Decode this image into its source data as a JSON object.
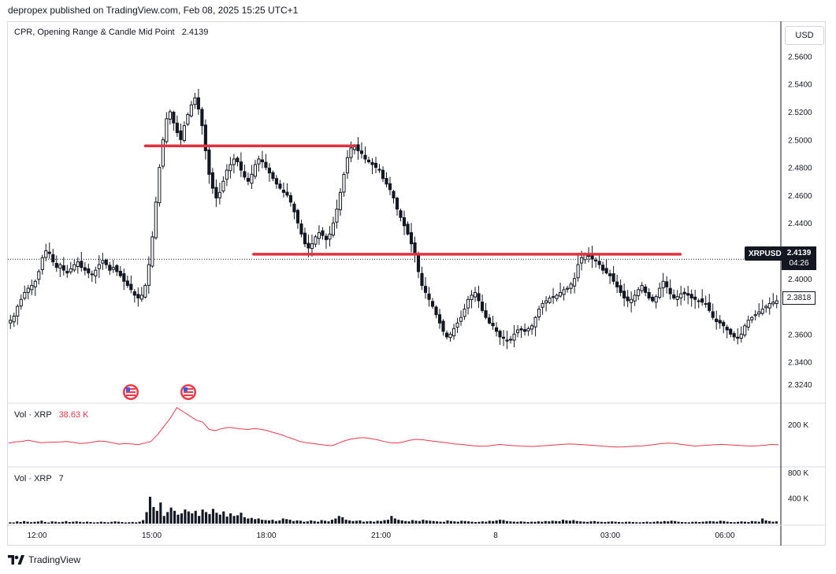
{
  "header": "depropex published on TradingView.com, Feb 08, 2025 15:25 UTC+1",
  "currency_button": "USD",
  "footer_brand": "TradingView",
  "main_legend": {
    "title": "CPR, Opening Range & Candle Mid Point",
    "value": "2.4139"
  },
  "vol_legend_1": {
    "title": "Vol · XRP",
    "value": "38.63 K"
  },
  "vol_legend_2": {
    "title": "Vol · XRP",
    "value": "7"
  },
  "price_tag": {
    "symbol": "XRPUSD",
    "price": "2.4139",
    "countdown": "04:26"
  },
  "close_value": "2.3818",
  "colors": {
    "candle": "#131722",
    "level_line": "#e0323f",
    "volume_ma": "#f23645",
    "price_line": "#131722"
  },
  "event_icons": [
    "us-flag-icon",
    "us-flag-icon"
  ],
  "chart_data": {
    "type": "candlestick",
    "x_ticks": [
      "12:00",
      "15:00",
      "18:00",
      "21:00",
      "8",
      "03:00",
      "06:00"
    ],
    "y_ticks": [
      "2.5600",
      "2.5400",
      "2.5200",
      "2.5000",
      "2.4800",
      "2.4600",
      "2.4400",
      "2.4200",
      "2.4000",
      "2.3818",
      "2.3600",
      "2.3400",
      "2.3240"
    ],
    "ylim": [
      2.316,
      2.571
    ],
    "horizontal_levels": [
      {
        "price": 2.4955,
        "from": "14:50",
        "to": "20:20"
      },
      {
        "price": 2.4175,
        "from": "17:40",
        "to": "04:50"
      }
    ],
    "last_price": 2.4139,
    "close_price": 2.3818,
    "price_path": [
      2.37,
      2.373,
      2.38,
      2.385,
      2.39,
      2.393,
      2.395,
      2.398,
      2.405,
      2.415,
      2.42,
      2.418,
      2.412,
      2.408,
      2.41,
      2.406,
      2.404,
      2.407,
      2.41,
      2.412,
      2.408,
      2.406,
      2.404,
      2.403,
      2.406,
      2.41,
      2.413,
      2.41,
      2.406,
      2.408,
      2.405,
      2.402,
      2.398,
      2.395,
      2.392,
      2.388,
      2.386,
      2.388,
      2.395,
      2.41,
      2.43,
      2.455,
      2.48,
      2.5,
      2.515,
      2.52,
      2.512,
      2.505,
      2.5,
      2.51,
      2.518,
      2.525,
      2.53,
      2.522,
      2.51,
      2.492,
      2.475,
      2.465,
      2.458,
      2.462,
      2.47,
      2.478,
      2.482,
      2.486,
      2.484,
      2.478,
      2.473,
      2.47,
      2.475,
      2.482,
      2.486,
      2.484,
      2.48,
      2.476,
      2.472,
      2.468,
      2.465,
      2.462,
      2.46,
      2.455,
      2.448,
      2.44,
      2.432,
      2.425,
      2.422,
      2.425,
      2.43,
      2.433,
      2.431,
      2.428,
      2.432,
      2.44,
      2.45,
      2.462,
      2.475,
      2.487,
      2.494,
      2.495,
      2.492,
      2.49,
      2.486,
      2.484,
      2.482,
      2.48,
      2.478,
      2.472,
      2.468,
      2.464,
      2.458,
      2.45,
      2.444,
      2.438,
      2.432,
      2.425,
      2.418,
      2.405,
      2.395,
      2.39,
      2.385,
      2.38,
      2.374,
      2.368,
      2.362,
      2.358,
      2.36,
      2.364,
      2.368,
      2.372,
      2.378,
      2.385,
      2.388,
      2.39,
      2.384,
      2.377,
      2.372,
      2.368,
      2.366,
      2.362,
      2.358,
      2.357,
      2.355,
      2.356,
      2.36,
      2.363,
      2.363,
      2.362,
      2.364,
      2.366,
      2.372,
      2.378,
      2.382,
      2.384,
      2.386,
      2.387,
      2.388,
      2.39,
      2.392,
      2.393,
      2.396,
      2.4,
      2.41,
      2.415,
      2.417,
      2.416,
      2.414,
      2.413,
      2.41,
      2.406,
      2.404,
      2.402,
      2.398,
      2.394,
      2.39,
      2.386,
      2.384,
      2.385,
      2.388,
      2.392,
      2.395,
      2.39,
      2.386,
      2.384,
      2.387,
      2.393,
      2.398,
      2.394,
      2.389,
      2.386,
      2.387,
      2.389,
      2.389,
      2.388,
      2.386,
      2.385,
      2.384,
      2.383,
      2.382,
      2.377,
      2.372,
      2.369,
      2.368,
      2.366,
      2.363,
      2.36,
      2.358,
      2.357,
      2.36,
      2.366,
      2.37,
      2.372,
      2.374,
      2.376,
      2.378,
      2.38,
      2.382,
      2.383,
      2.384
    ],
    "volume_ma": [
      110,
      116,
      118,
      124,
      118,
      112,
      114,
      115,
      116,
      118,
      114,
      108,
      110,
      115,
      120,
      118,
      112,
      105,
      108,
      106,
      103,
      110,
      118,
      150,
      190,
      230,
      280,
      260,
      240,
      220,
      210,
      175,
      170,
      180,
      185,
      182,
      178,
      175,
      180,
      176,
      170,
      160,
      152,
      140,
      130,
      118,
      112,
      108,
      104,
      100,
      98,
      110,
      122,
      130,
      135,
      136,
      132,
      126,
      118,
      112,
      110,
      116,
      124,
      128,
      126,
      122,
      118,
      115,
      110,
      106,
      104,
      100,
      97,
      95,
      96,
      100,
      104,
      100,
      98,
      96,
      95,
      94,
      96,
      98,
      100,
      103,
      105,
      106,
      104,
      102,
      100,
      98,
      95,
      93,
      91,
      92,
      94,
      96,
      97,
      100,
      104,
      108,
      110,
      108,
      104,
      100,
      96,
      98,
      100,
      102,
      104,
      103,
      101,
      99,
      97,
      96,
      98,
      100,
      104,
      102
    ],
    "volume_ma_yticks": [
      "200 K"
    ],
    "volume_yticks": [
      "800 K",
      "400 K"
    ],
    "volume_max_label_k": 800,
    "volume": [
      20,
      18,
      35,
      25,
      40,
      30,
      22,
      28,
      33,
      45,
      26,
      18,
      35,
      30,
      22,
      28,
      40,
      25,
      30,
      35,
      28,
      22,
      30,
      26,
      18,
      22,
      30,
      25,
      20,
      28,
      35,
      30,
      24,
      18,
      22,
      26,
      20,
      30,
      55,
      180,
      420,
      260,
      200,
      330,
      120,
      180,
      250,
      200,
      140,
      160,
      220,
      190,
      160,
      200,
      120,
      220,
      180,
      150,
      230,
      170,
      140,
      190,
      110,
      160,
      120,
      130,
      170,
      100,
      80,
      90,
      70,
      80,
      60,
      55,
      50,
      60,
      40,
      50,
      80,
      70,
      60,
      40,
      50,
      45,
      30,
      35,
      50,
      40,
      30,
      55,
      45,
      35,
      60,
      80,
      120,
      100,
      60,
      50,
      40,
      45,
      50,
      30,
      35,
      40,
      30,
      45,
      40,
      55,
      60,
      120,
      80,
      60,
      50,
      40,
      35,
      55,
      45,
      40,
      60,
      50,
      45,
      40,
      35,
      30,
      28,
      50,
      40,
      35,
      30,
      45,
      40,
      35,
      30,
      25,
      28,
      35,
      30,
      45,
      40,
      50,
      60,
      55,
      40,
      35,
      30,
      28,
      35,
      30,
      25,
      30,
      28,
      35,
      30,
      40,
      35,
      45,
      40,
      38,
      60,
      50,
      45,
      55,
      40,
      35,
      30,
      28,
      35,
      40,
      30,
      28,
      25,
      30,
      35,
      30,
      25,
      22,
      28,
      30,
      25,
      22,
      20,
      25,
      30,
      22,
      28,
      35,
      30,
      40,
      35,
      45,
      40,
      30,
      25,
      22,
      20,
      28,
      30,
      25,
      30,
      35,
      40,
      35,
      30,
      45,
      40,
      30,
      25,
      22,
      28,
      35,
      30,
      25,
      40,
      35,
      30,
      80,
      50,
      40,
      30,
      35
    ]
  }
}
